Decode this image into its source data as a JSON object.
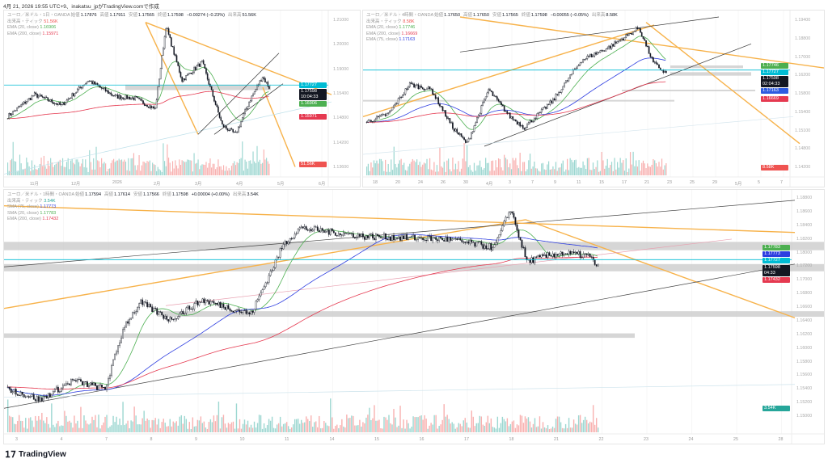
{
  "caption": "4月 21, 2026 19:55 UTC+9、inakatsu_jpがTradingView.comで作成",
  "brand": "TradingView",
  "colors": {
    "up": "#26a69a",
    "down": "#ef5350",
    "ema20": "#4caf50",
    "ema200": "#e53950",
    "ma75": "#2d3de0",
    "cyan": "#00bcd4",
    "orange": "#f7b24a",
    "zone": "#c8c8c8"
  },
  "panes": [
    {
      "id": "daily",
      "symbol": "ユーロ／米ドル・1日・OANDA",
      "o_label": "始値",
      "o": "1.17876",
      "h_label": "高値",
      "h": "1.17911",
      "l_label": "安値",
      "l": "1.17565",
      "c_label": "終値",
      "c": "1.17598",
      "chg": "−0.00274 (−0.23%)",
      "v_label": "出来高",
      "v": "51.56K",
      "indicators": [
        {
          "name": "出来高・ティック",
          "value": "51.56K",
          "color": "#ef5350"
        },
        {
          "name": "EMA (20, close)",
          "value": "1.16906",
          "color": "#4caf50"
        },
        {
          "name": "EMA (200, close)",
          "value": "1.15971",
          "color": "#e53950"
        }
      ],
      "price_range": [
        1.13,
        1.215
      ],
      "scale": [
        "1.21000",
        "1.20000",
        "1.19000",
        "1.15400",
        "1.14800",
        "1.14200",
        "1.13600"
      ],
      "time_axis": [
        "11月",
        "12月",
        "2026",
        "2月",
        "3月",
        "4月",
        "5月",
        "6月"
      ],
      "tags": [
        {
          "value": "1.17727",
          "color": "#00bcd4",
          "price": 1.1773
        },
        {
          "value": "1.17598",
          "sub": "10:04:33",
          "color": "#131722",
          "price": 1.1745
        },
        {
          "value": "1.16906",
          "color": "#4caf50",
          "price": 1.1691
        },
        {
          "value": "1.15971",
          "color": "#e53950",
          "price": 1.1597
        },
        {
          "value": "51.56K",
          "color": "#ef5350",
          "price": 1.1335
        }
      ],
      "bars": 196,
      "path": [
        [
          0,
          1.16
        ],
        [
          20,
          1.172
        ],
        [
          40,
          1.166
        ],
        [
          60,
          1.18
        ],
        [
          80,
          1.171
        ],
        [
          95,
          1.17
        ],
        [
          110,
          1.164
        ],
        [
          118,
          1.21
        ],
        [
          130,
          1.18
        ],
        [
          145,
          1.19
        ],
        [
          160,
          1.155
        ],
        [
          170,
          1.15
        ],
        [
          180,
          1.168
        ],
        [
          190,
          1.182
        ],
        [
          195,
          1.176
        ]
      ]
    },
    {
      "id": "h4",
      "symbol": "ユーロ／米ドル・4時間・OANDA",
      "o_label": "始値",
      "o": "1.17650",
      "h_label": "高値",
      "h": "1.17650",
      "l_label": "安値",
      "l": "1.17565",
      "c_label": "終値",
      "c": "1.17598",
      "chg": "−0.00055 (−0.05%)",
      "v_label": "出来高",
      "v": "8.58K",
      "indicators": [
        {
          "name": "出来高・ティック",
          "value": "8.58K",
          "color": "#ef5350"
        },
        {
          "name": "EMA (20, close)",
          "value": "1.17746",
          "color": "#4caf50"
        },
        {
          "name": "EMA (200, close)",
          "value": "1.16669",
          "color": "#e53950"
        },
        {
          "name": "EMA (75, close)",
          "value": "1.17163",
          "color": "#2d3de0"
        }
      ],
      "price_range": [
        1.14,
        1.197
      ],
      "scale": [
        "1.19400",
        "1.18800",
        "1.17000",
        "1.16200",
        "1.15800",
        "1.15400",
        "1.15100",
        "1.14800",
        "1.14200"
      ],
      "time_axis": [
        "18",
        "20",
        "24",
        "26",
        "30",
        "4月",
        "3",
        "7",
        "9",
        "11",
        "15",
        "17",
        "21",
        "23",
        "25",
        "29",
        "5月",
        "5",
        "7"
      ],
      "tags": [
        {
          "value": "1.17746",
          "color": "#4caf50",
          "price": 1.179
        },
        {
          "value": "1.17727",
          "color": "#00bcd4",
          "price": 1.1772
        },
        {
          "value": "1.17598",
          "sub": "02:04:33",
          "color": "#131722",
          "price": 1.1752
        },
        {
          "value": "1.17163",
          "color": "#2d5be0",
          "price": 1.1716
        },
        {
          "value": "1.16669",
          "color": "#e53950",
          "price": 1.1667
        },
        {
          "value": "8.58K",
          "color": "#ef5350",
          "price": 1.141
        }
      ],
      "bars": 210,
      "path": [
        [
          0,
          1.158
        ],
        [
          15,
          1.161
        ],
        [
          30,
          1.172
        ],
        [
          45,
          1.17
        ],
        [
          60,
          1.156
        ],
        [
          70,
          1.15
        ],
        [
          85,
          1.17
        ],
        [
          100,
          1.16
        ],
        [
          110,
          1.156
        ],
        [
          130,
          1.166
        ],
        [
          150,
          1.181
        ],
        [
          170,
          1.186
        ],
        [
          190,
          1.193
        ],
        [
          200,
          1.18
        ],
        [
          209,
          1.176
        ]
      ]
    },
    {
      "id": "h1",
      "symbol": "ユーロ／米ドル・1時間・OANDA",
      "o_label": "始値",
      "o": "1.17594",
      "h_label": "高値",
      "h": "1.17614",
      "l_label": "安値",
      "l": "1.17566",
      "c_label": "終値",
      "c": "1.17598",
      "chg": "+0.00004 (+0.00%)",
      "v_label": "出来高",
      "v": "3.54K",
      "indicators": [
        {
          "name": "出来高・ティック",
          "value": "3.54K",
          "color": "#26a69a"
        },
        {
          "name": "SMA (75, close)",
          "value": "1.17773",
          "color": "#2d3de0"
        },
        {
          "name": "SMA (20, close)",
          "value": "1.17783",
          "color": "#4caf50"
        },
        {
          "name": "EMA (200, close)",
          "value": "1.17432",
          "color": "#e53950"
        }
      ],
      "price_range": [
        1.1485,
        1.189
      ],
      "scale": [
        "1.18800",
        "1.18600",
        "1.18400",
        "1.18200",
        "1.18000",
        "1.17200",
        "1.17000",
        "1.16800",
        "1.16600",
        "1.16400",
        "1.16200",
        "1.16000",
        "1.15800",
        "1.15600",
        "1.15400",
        "1.15200",
        "1.15000"
      ],
      "time_axis": [
        "3",
        "4",
        "7",
        "8",
        "9",
        "10",
        "11",
        "14",
        "15",
        "16",
        "17",
        "18",
        "21",
        "22",
        "23",
        "24",
        "25",
        "28"
      ],
      "tags": [
        {
          "value": "1.17783",
          "color": "#4caf50",
          "price": 1.1795
        },
        {
          "value": "1.17773",
          "color": "#2d3de0",
          "price": 1.1784
        },
        {
          "value": "1.17727",
          "color": "#00bcd4",
          "price": 1.1773
        },
        {
          "value": "1.17598",
          "sub": "04:33",
          "color": "#131722",
          "price": 1.1758
        },
        {
          "value": "1.17432",
          "color": "#e53950",
          "price": 1.174
        },
        {
          "value": "3.54K",
          "color": "#26a69a",
          "price": 1.1505
        }
      ],
      "bars": 365,
      "path": [
        [
          0,
          1.154
        ],
        [
          20,
          1.152
        ],
        [
          40,
          1.1555
        ],
        [
          60,
          1.154
        ],
        [
          72,
          1.1655
        ],
        [
          82,
          1.1695
        ],
        [
          100,
          1.1665
        ],
        [
          120,
          1.17
        ],
        [
          150,
          1.1675
        ],
        [
          170,
          1.18
        ],
        [
          180,
          1.183
        ],
        [
          220,
          1.1815
        ],
        [
          270,
          1.181
        ],
        [
          300,
          1.1795
        ],
        [
          310,
          1.1865
        ],
        [
          320,
          1.177
        ],
        [
          340,
          1.1785
        ],
        [
          358,
          1.178
        ],
        [
          364,
          1.176
        ]
      ]
    }
  ]
}
